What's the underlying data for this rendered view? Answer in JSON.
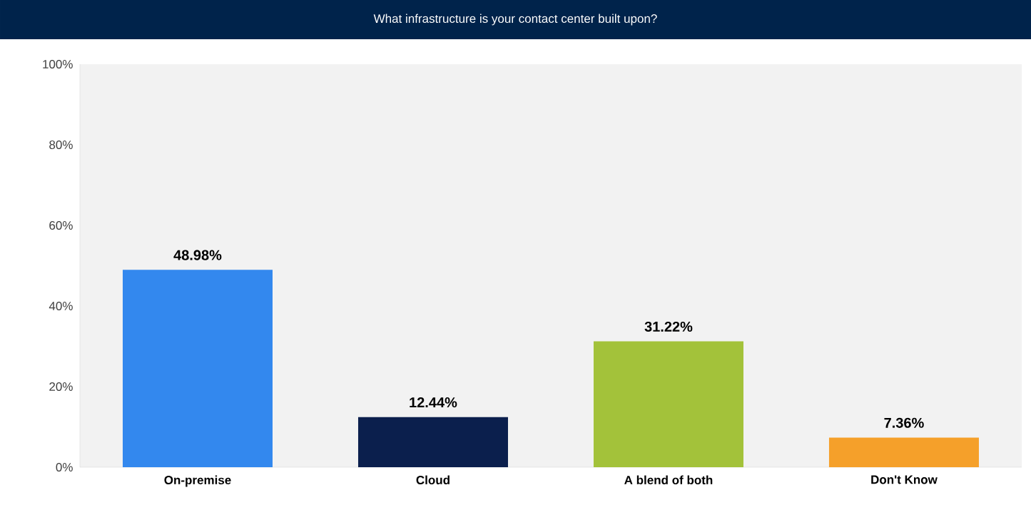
{
  "chart_data": {
    "type": "bar",
    "title": "What infrastructure is your contact center built upon?",
    "categories": [
      "On-premise",
      "Cloud",
      "A blend of both",
      "Don't Know"
    ],
    "values": [
      48.98,
      12.44,
      31.22,
      7.36
    ],
    "colors": [
      "#3388ee",
      "#0b1f4d",
      "#a3c23a",
      "#f5a02a"
    ],
    "value_labels": [
      "48.98%",
      "12.44%",
      "31.22%",
      "7.36%"
    ],
    "ylim": [
      0,
      100
    ],
    "yticks": [
      {
        "value": 0,
        "label": "0%"
      },
      {
        "value": 20,
        "label": "20%"
      },
      {
        "value": 40,
        "label": "40%"
      },
      {
        "value": 60,
        "label": "60%"
      },
      {
        "value": 80,
        "label": "80%"
      },
      {
        "value": 100,
        "label": "100%"
      }
    ],
    "grid": false
  }
}
